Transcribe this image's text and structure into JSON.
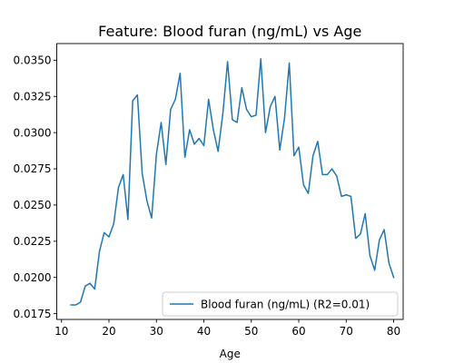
{
  "chart_data": {
    "type": "line",
    "title": "Feature: Blood furan (ng/mL) vs Age",
    "xlabel": "Age",
    "ylabel": "",
    "xlim": [
      9,
      82
    ],
    "ylim": [
      0.0171,
      0.03615
    ],
    "xticks": [
      10,
      20,
      30,
      40,
      50,
      60,
      70,
      80
    ],
    "yticks": [
      0.0175,
      0.02,
      0.0225,
      0.025,
      0.0275,
      0.03,
      0.0325,
      0.035
    ],
    "xtick_labels": [
      "10",
      "20",
      "30",
      "40",
      "50",
      "60",
      "70",
      "80"
    ],
    "ytick_labels": [
      "0.0175",
      "0.0200",
      "0.0225",
      "0.0250",
      "0.0275",
      "0.0300",
      "0.0325",
      "0.0350"
    ],
    "grid": false,
    "legend_position": "lower-right",
    "series": [
      {
        "name": "Blood furan (ng/mL) (R2=0.01)",
        "color": "#1f77b4",
        "x": [
          12,
          13,
          14,
          15,
          16,
          17,
          18,
          19,
          20,
          21,
          22,
          23,
          24,
          25,
          26,
          27,
          28,
          29,
          30,
          31,
          32,
          33,
          34,
          35,
          36,
          37,
          38,
          39,
          40,
          41,
          42,
          43,
          44,
          45,
          46,
          47,
          48,
          49,
          50,
          51,
          52,
          53,
          54,
          55,
          56,
          57,
          58,
          59,
          60,
          61,
          62,
          63,
          64,
          65,
          66,
          67,
          68,
          69,
          70,
          71,
          72,
          73,
          74,
          75,
          76,
          77,
          78,
          79,
          80
        ],
        "y": [
          0.0181,
          0.0181,
          0.0183,
          0.0194,
          0.0196,
          0.0192,
          0.0218,
          0.0231,
          0.0228,
          0.0237,
          0.0262,
          0.0271,
          0.024,
          0.0322,
          0.0326,
          0.0272,
          0.0253,
          0.0241,
          0.0285,
          0.0307,
          0.0278,
          0.0316,
          0.0323,
          0.0341,
          0.0283,
          0.0302,
          0.0292,
          0.0296,
          0.0291,
          0.0323,
          0.0302,
          0.0287,
          0.0313,
          0.0349,
          0.0309,
          0.0307,
          0.0331,
          0.0316,
          0.0311,
          0.0312,
          0.0351,
          0.03,
          0.0318,
          0.0325,
          0.0288,
          0.031,
          0.0348,
          0.0284,
          0.029,
          0.0264,
          0.0258,
          0.0284,
          0.0294,
          0.0271,
          0.0271,
          0.0275,
          0.027,
          0.0256,
          0.0257,
          0.0256,
          0.0227,
          0.023,
          0.0244,
          0.0215,
          0.0205,
          0.0226,
          0.0233,
          0.021,
          0.02
        ]
      }
    ]
  }
}
